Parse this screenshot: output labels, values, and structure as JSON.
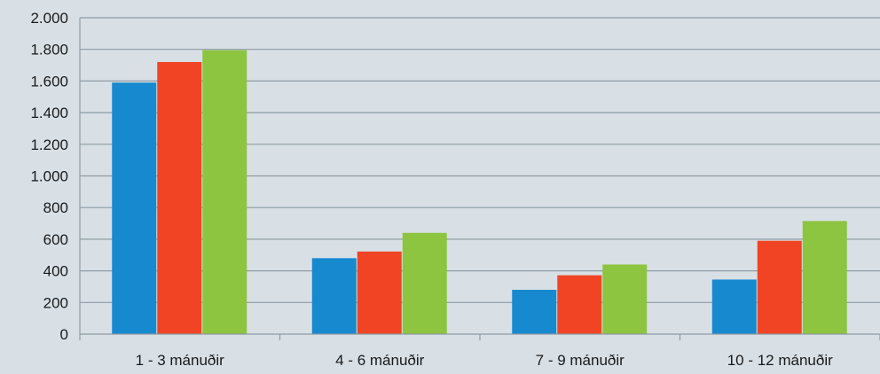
{
  "chart_data": {
    "type": "bar",
    "categories": [
      "1 - 3 mánuðir",
      "4 - 6 mánuðir",
      "7 - 9 mánuðir",
      "10 - 12 mánuðir"
    ],
    "series": [
      {
        "color": "#1789cf",
        "values": [
          1590,
          480,
          280,
          345
        ]
      },
      {
        "color": "#f04424",
        "values": [
          1720,
          522,
          372,
          590
        ]
      },
      {
        "color": "#8dc440",
        "values": [
          1795,
          640,
          440,
          715
        ]
      }
    ],
    "ylim": [
      0,
      2000
    ],
    "y_ticks": [
      0,
      200,
      400,
      600,
      800,
      1000,
      1200,
      1400,
      1600,
      1800,
      2000
    ],
    "y_tick_labels": [
      "0",
      "200",
      "400",
      "600",
      "800",
      "1.000",
      "1.200",
      "1.400",
      "1.600",
      "1.800",
      "2.000"
    ],
    "grid": true,
    "legend": "none",
    "title": "",
    "xlabel": "",
    "ylabel": ""
  },
  "colors": {
    "background": "#d8e0e6",
    "gridline": "#8e9aa3",
    "axis": "#8e9aa3"
  }
}
